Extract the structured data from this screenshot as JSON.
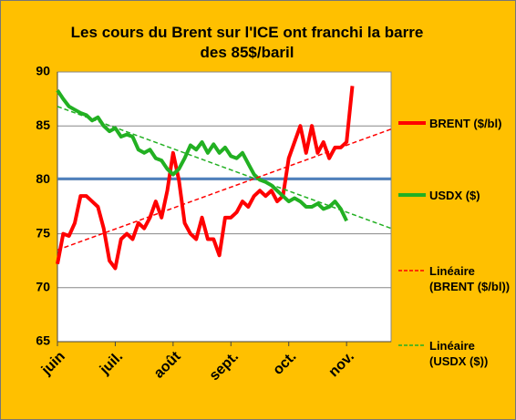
{
  "chart_data": {
    "type": "line",
    "title": "Les cours du Brent sur l'ICE  ont franchi la barre des 85$/baril",
    "x": [
      0,
      0.1,
      0.2,
      0.3,
      0.4,
      0.5,
      0.6,
      0.7,
      0.8,
      0.9,
      1,
      1.1,
      1.2,
      1.3,
      1.4,
      1.5,
      1.6,
      1.7,
      1.8,
      1.9,
      2,
      2.1,
      2.2,
      2.3,
      2.4,
      2.5,
      2.6,
      2.7,
      2.8,
      2.9,
      3,
      3.1,
      3.2,
      3.3,
      3.4,
      3.5,
      3.6,
      3.7,
      3.8,
      3.9,
      4,
      4.1,
      4.2,
      4.3,
      4.4,
      4.5,
      4.6,
      4.7,
      4.8,
      4.9,
      5,
      5.1
    ],
    "series": [
      {
        "name": "BRENT ($/bl)",
        "color": "#ff0000",
        "values": [
          72.2,
          75,
          74.8,
          76,
          78.5,
          78.5,
          78,
          77.5,
          75.5,
          72.5,
          71.8,
          74.5,
          75,
          74.5,
          76,
          75.5,
          76.5,
          78,
          76.5,
          79,
          82.5,
          80,
          76,
          75,
          74.5,
          76.5,
          74.5,
          74.5,
          73,
          76.5,
          76.5,
          77,
          78,
          77.5,
          78.5,
          79,
          78.5,
          79,
          78,
          78.5,
          82,
          83.5,
          85,
          82.5,
          85,
          82.5,
          83.5,
          82,
          83,
          83,
          83.5,
          88.7
        ]
      },
      {
        "name": "USDX ($)",
        "color": "#22b022",
        "values": [
          88.3,
          87.5,
          86.8,
          86.5,
          86.2,
          86,
          85.5,
          85.8,
          85,
          84.5,
          84.8,
          84,
          84.2,
          84,
          82.8,
          82.5,
          82.8,
          82,
          81.8,
          81,
          80.5,
          81,
          82,
          83.2,
          82.8,
          83.5,
          82.5,
          83.3,
          82.5,
          83,
          82.2,
          82,
          82.5,
          81.5,
          80.5,
          80,
          79.8,
          79.5,
          79,
          78.5,
          78,
          78.3,
          78,
          77.5,
          77.5,
          77.8,
          77.3,
          77.5,
          78,
          77.3,
          76.2,
          null
        ]
      },
      {
        "name": "Linéaire (BRENT ($/bl))",
        "color": "#ff0000",
        "dashed": true,
        "x": [
          0,
          5.77
        ],
        "values": [
          73.5,
          84.7
        ]
      },
      {
        "name": "Linéaire (USDX ($))",
        "color": "#22b022",
        "dashed": true,
        "x": [
          0,
          5.77
        ],
        "values": [
          86.8,
          75.5
        ]
      }
    ],
    "reference_line": {
      "value": 80.1,
      "color": "#4f81bd"
    },
    "xlim": [
      0,
      5.77
    ],
    "xticks": [
      {
        "value": 0,
        "label": "juin"
      },
      {
        "value": 1,
        "label": "juil."
      },
      {
        "value": 2,
        "label": "août"
      },
      {
        "value": 3,
        "label": "sept."
      },
      {
        "value": 4,
        "label": "oct."
      },
      {
        "value": 5,
        "label": "nov."
      }
    ],
    "ylim": [
      65,
      90
    ],
    "yticks": [
      65,
      70,
      75,
      80,
      85,
      90
    ],
    "grid": true
  }
}
